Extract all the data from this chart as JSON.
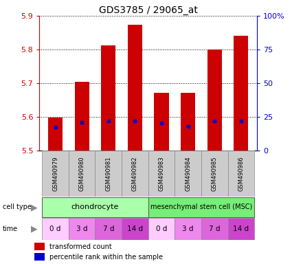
{
  "title": "GDS3785 / 29065_at",
  "samples": [
    "GSM490979",
    "GSM490980",
    "GSM490981",
    "GSM490982",
    "GSM490983",
    "GSM490984",
    "GSM490985",
    "GSM490986"
  ],
  "bar_tops": [
    5.597,
    5.703,
    5.812,
    5.873,
    5.672,
    5.672,
    5.801,
    5.84
  ],
  "bar_base": 5.5,
  "blue_markers": [
    5.57,
    5.583,
    5.588,
    5.587,
    5.581,
    5.572,
    5.588,
    5.588
  ],
  "ylim_left": [
    5.5,
    5.9
  ],
  "ylim_right": [
    0,
    100
  ],
  "yticks_left": [
    5.5,
    5.6,
    5.7,
    5.8,
    5.9
  ],
  "yticks_right": [
    0,
    25,
    50,
    75,
    100
  ],
  "ytick_labels_right": [
    "0",
    "25",
    "50",
    "75",
    "100%"
  ],
  "bar_color": "#cc0000",
  "marker_color": "#0000cc",
  "left_axis_color": "#cc0000",
  "right_axis_color": "#0000cc",
  "cell_type_labels": [
    "chondrocyte",
    "mesenchymal stem cell (MSC)"
  ],
  "cell_type_colors": [
    "#aaffaa",
    "#77ee77"
  ],
  "time_labels": [
    "0 d",
    "3 d",
    "7 d",
    "14 d",
    "0 d",
    "3 d",
    "7 d",
    "14 d"
  ],
  "time_colors": [
    "#ffccff",
    "#ee88ee",
    "#dd66dd",
    "#cc44cc",
    "#ffccff",
    "#ee88ee",
    "#dd66dd",
    "#cc44cc"
  ],
  "sample_bg_color": "#cccccc",
  "legend_red_label": "transformed count",
  "legend_blue_label": "percentile rank within the sample",
  "bar_width": 0.55,
  "title_fontsize": 10
}
